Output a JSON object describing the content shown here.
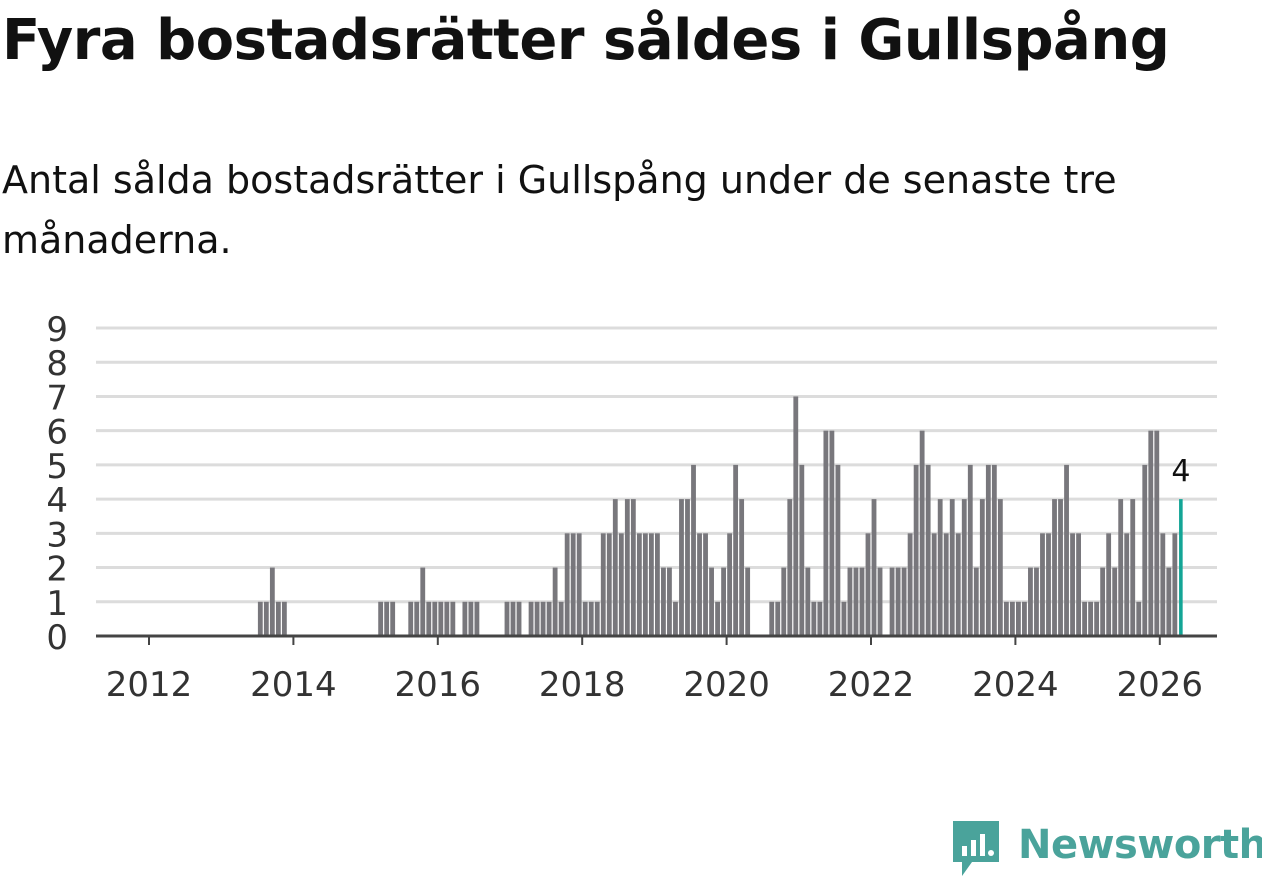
{
  "header": {
    "title": "Fyra bostadsrätter såldes i Gullspång",
    "subtitle": "Antal sålda bostadsrätter i Gullspång under de senaste tre månaderna."
  },
  "brand": {
    "name": "Newsworthy",
    "color": "#4aa39b",
    "icon": "newsworthy-logo-icon"
  },
  "chart_data": {
    "type": "bar",
    "title": "Fyra bostadsrätter såldes i Gullspång",
    "subtitle": "Antal sålda bostadsrätter i Gullspång under de senaste tre månaderna.",
    "xlabel": "",
    "ylabel": "",
    "ylim": [
      0,
      9
    ],
    "yticks": [
      0,
      1,
      2,
      3,
      4,
      5,
      6,
      7,
      8,
      9
    ],
    "xticks": [
      2012,
      2014,
      2016,
      2018,
      2020,
      2022,
      2024,
      2026
    ],
    "grid": true,
    "bar_color": "#78777c",
    "highlight_color": "#13a596",
    "start": "2011-03",
    "frequency": "monthly",
    "values": [
      0,
      0,
      0,
      0,
      0,
      0,
      0,
      0,
      0,
      0,
      0,
      0,
      0,
      0,
      0,
      0,
      0,
      0,
      0,
      0,
      0,
      0,
      0,
      0,
      0,
      0,
      0,
      0,
      1,
      1,
      2,
      1,
      1,
      0,
      0,
      0,
      0,
      0,
      0,
      0,
      0,
      0,
      0,
      0,
      0,
      0,
      0,
      0,
      1,
      1,
      1,
      0,
      0,
      1,
      1,
      2,
      1,
      1,
      1,
      1,
      1,
      0,
      1,
      1,
      1,
      0,
      0,
      0,
      0,
      1,
      1,
      1,
      0,
      1,
      1,
      1,
      1,
      2,
      1,
      3,
      3,
      3,
      1,
      1,
      1,
      3,
      3,
      4,
      3,
      4,
      4,
      3,
      3,
      3,
      3,
      2,
      2,
      1,
      4,
      4,
      5,
      3,
      3,
      2,
      1,
      2,
      3,
      5,
      4,
      2,
      0,
      0,
      0,
      1,
      1,
      2,
      4,
      7,
      5,
      2,
      1,
      1,
      6,
      6,
      5,
      1,
      2,
      2,
      2,
      3,
      4,
      2,
      0,
      2,
      2,
      2,
      3,
      5,
      6,
      5,
      3,
      4,
      3,
      4,
      3,
      4,
      5,
      2,
      4,
      5,
      5,
      4,
      1,
      1,
      1,
      1,
      2,
      2,
      3,
      3,
      4,
      4,
      5,
      3,
      3,
      1,
      1,
      1,
      2,
      3,
      2,
      4,
      3,
      4,
      1,
      5,
      6,
      6,
      3,
      2,
      3,
      4
    ],
    "highlight": {
      "label": "4",
      "value": 4
    }
  }
}
